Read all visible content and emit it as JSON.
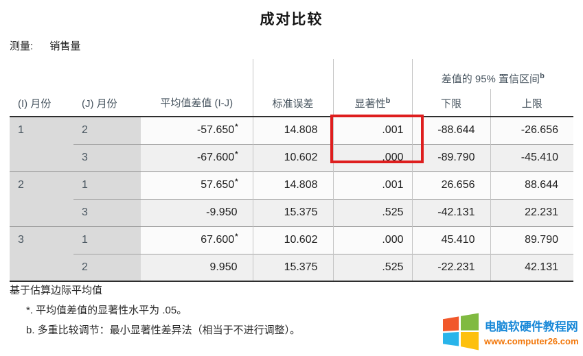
{
  "page": {
    "title": "成对比较",
    "measure": {
      "label": "测量:",
      "value": "销售量"
    }
  },
  "table": {
    "headers": {
      "i": "(I) 月份",
      "j": "(J) 月份",
      "mean_diff": "平均值差值 (I-J)",
      "std_error": "标准误差",
      "sig": "显著性",
      "sig_sup": "b",
      "ci_group": "差值的 95% 置信区间",
      "ci_group_sup": "b",
      "lower": "下限",
      "upper": "上限"
    },
    "star_symbol": "*",
    "groups": [
      {
        "i": "1",
        "rows": [
          {
            "j": "2",
            "mean_diff": "-57.650",
            "starred": true,
            "std_error": "14.808",
            "sig": ".001",
            "lower": "-88.644",
            "upper": "-26.656"
          },
          {
            "j": "3",
            "mean_diff": "-67.600",
            "starred": true,
            "std_error": "10.602",
            "sig": ".000",
            "lower": "-89.790",
            "upper": "-45.410"
          }
        ]
      },
      {
        "i": "2",
        "rows": [
          {
            "j": "1",
            "mean_diff": "57.650",
            "starred": true,
            "std_error": "14.808",
            "sig": ".001",
            "lower": "26.656",
            "upper": "88.644"
          },
          {
            "j": "3",
            "mean_diff": "-9.950",
            "starred": false,
            "std_error": "15.375",
            "sig": ".525",
            "lower": "-42.131",
            "upper": "22.231"
          }
        ]
      },
      {
        "i": "3",
        "rows": [
          {
            "j": "1",
            "mean_diff": "67.600",
            "starred": true,
            "std_error": "10.602",
            "sig": ".000",
            "lower": "45.410",
            "upper": "89.790"
          },
          {
            "j": "2",
            "mean_diff": "9.950",
            "starred": false,
            "std_error": "15.375",
            "sig": ".525",
            "lower": "-22.231",
            "upper": "42.131"
          }
        ]
      }
    ]
  },
  "footnotes": {
    "base": "基于估算边际平均值",
    "star_note": "*. 平均值差值的显著性水平为 .05。",
    "b_note": "b. 多重比较调节：最小显著性差异法（相当于不进行调整）。"
  },
  "annotation": {
    "highlight_color": "#de1e1e"
  },
  "logo": {
    "site_name": "电脑软硬件教程网",
    "site_url": "www.computer26.com",
    "name_color": "#1a89d8",
    "url_color": "#f2770a",
    "flag_colors": {
      "top_left": "#f1582b",
      "top_right": "#80ba41",
      "bottom_left": "#29b4ea",
      "bottom_right": "#fdc00e"
    }
  }
}
